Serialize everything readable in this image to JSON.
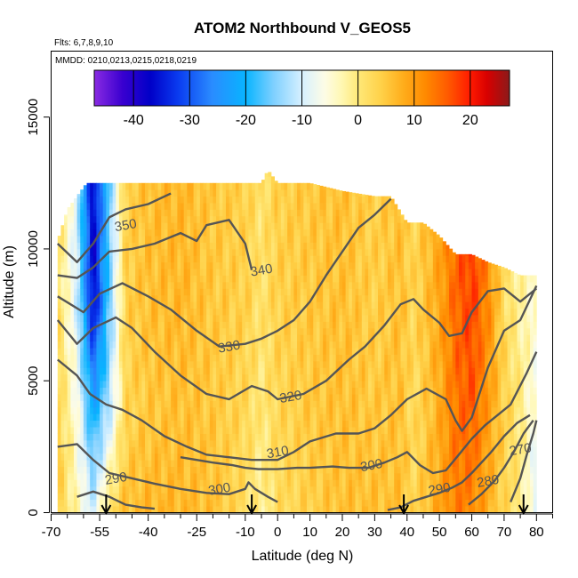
{
  "chart_data": {
    "type": "heatmap",
    "title": "ATOM2 Northbound V_GEOS5",
    "flights_text": "Flts: 6,7,8,9,10",
    "dates_text": "MMDD: 0210,0213,0215,0218,0219",
    "xlabel": "Latitude (deg N)",
    "ylabel": "Altitude (m)",
    "xlim": [
      -70,
      85
    ],
    "ylim": [
      0,
      17500
    ],
    "x_ticks": [
      {
        "v": -70,
        "label": "-70"
      },
      {
        "v": -55,
        "label": "-55"
      },
      {
        "v": -40,
        "label": "-40"
      },
      {
        "v": -25,
        "label": "-25"
      },
      {
        "v": -10,
        "label": "-10"
      },
      {
        "v": 0,
        "label": "0"
      },
      {
        "v": 10,
        "label": "10"
      },
      {
        "v": 20,
        "label": "20"
      },
      {
        "v": 30,
        "label": "30"
      },
      {
        "v": 40,
        "label": "40"
      },
      {
        "v": 50,
        "label": "50"
      },
      {
        "v": 60,
        "label": "60"
      },
      {
        "v": 70,
        "label": "70"
      },
      {
        "v": 80,
        "label": "80"
      }
    ],
    "x_minor_ticks": [
      -65,
      -60,
      -50,
      -45,
      -35,
      -30,
      -20,
      -15,
      -5,
      5,
      15,
      25,
      35,
      45,
      55,
      65,
      75,
      85
    ],
    "y_ticks": [
      {
        "v": 0,
        "label": "0"
      },
      {
        "v": 5000,
        "label": "5000"
      },
      {
        "v": 10000,
        "label": "10000"
      },
      {
        "v": 15000,
        "label": "15000"
      }
    ],
    "colorbar": {
      "range": [
        -47,
        27
      ],
      "ticks": [
        {
          "v": -40,
          "label": "-40"
        },
        {
          "v": -30,
          "label": "-30"
        },
        {
          "v": -20,
          "label": "-20"
        },
        {
          "v": -10,
          "label": "-10"
        },
        {
          "v": 0,
          "label": "0"
        },
        {
          "v": 10,
          "label": "10"
        },
        {
          "v": 20,
          "label": "20"
        }
      ],
      "stops": [
        {
          "v": -47,
          "color": "#8a2be2"
        },
        {
          "v": -42,
          "color": "#3a00d0"
        },
        {
          "v": -37,
          "color": "#0000c8"
        },
        {
          "v": -32,
          "color": "#0a3cf0"
        },
        {
          "v": -26,
          "color": "#2a8cff"
        },
        {
          "v": -20,
          "color": "#08b4ff"
        },
        {
          "v": -15,
          "color": "#7fd0ff"
        },
        {
          "v": -10,
          "color": "#d6f0ff"
        },
        {
          "v": -6,
          "color": "#fdfce6"
        },
        {
          "v": -3,
          "color": "#fff8b4"
        },
        {
          "v": 0,
          "color": "#ffe878"
        },
        {
          "v": 4,
          "color": "#ffd24a"
        },
        {
          "v": 8,
          "color": "#ffae1c"
        },
        {
          "v": 12,
          "color": "#ff8a00"
        },
        {
          "v": 16,
          "color": "#ff5a00"
        },
        {
          "v": 20,
          "color": "#ff1a00"
        },
        {
          "v": 23,
          "color": "#d80000"
        },
        {
          "v": 27,
          "color": "#8b1a1a"
        }
      ]
    },
    "flight_track_arrows_latitude": [
      -53,
      -8,
      39,
      76
    ],
    "heatmap_latitude_range": [
      -68,
      80
    ],
    "heatmap_column_tops_m": [
      [
        -68,
        10300
      ],
      [
        -65,
        11500
      ],
      [
        -62,
        12000
      ],
      [
        -59,
        12500
      ],
      [
        -55,
        12500
      ],
      [
        -50,
        12500
      ],
      [
        -45,
        12500
      ],
      [
        -40,
        12500
      ],
      [
        -35,
        12500
      ],
      [
        -30,
        12500
      ],
      [
        -25,
        12500
      ],
      [
        -20,
        12500
      ],
      [
        -15,
        12500
      ],
      [
        -10,
        12500
      ],
      [
        -5,
        12500
      ],
      [
        -3,
        13000
      ],
      [
        0,
        12500
      ],
      [
        10,
        12500
      ],
      [
        20,
        12200
      ],
      [
        30,
        12000
      ],
      [
        35,
        12000
      ],
      [
        40,
        11000
      ],
      [
        45,
        11000
      ],
      [
        50,
        10500
      ],
      [
        55,
        9800
      ],
      [
        60,
        9800
      ],
      [
        65,
        9500
      ],
      [
        70,
        9300
      ],
      [
        75,
        9000
      ],
      [
        80,
        9000
      ]
    ],
    "values_by_latitude_altitude": {
      "latitude": [
        -68,
        -62,
        -57,
        -52,
        -47,
        -40,
        -30,
        -20,
        -10,
        -5,
        0,
        10,
        20,
        30,
        38,
        42,
        50,
        55,
        60,
        65,
        70,
        75,
        79
      ],
      "low_altitude_0_4000m": [
        5,
        -3,
        -10,
        2,
        6,
        7,
        7,
        6,
        2,
        -2,
        2,
        4,
        6,
        6,
        6,
        3,
        9,
        13,
        12,
        8,
        3,
        0,
        -8
      ],
      "mid_altitude_4000_8000m": [
        4,
        -6,
        -22,
        -12,
        3,
        5,
        6,
        5,
        3,
        0,
        3,
        5,
        6,
        5,
        6,
        2,
        8,
        14,
        16,
        10,
        4,
        0,
        -6
      ],
      "high_altitude_8000_13000m": [
        2,
        -10,
        -38,
        -16,
        4,
        6,
        7,
        5,
        4,
        1,
        4,
        5,
        6,
        4,
        6,
        3,
        9,
        15,
        18,
        12,
        2,
        -2,
        -4
      ]
    },
    "contour_labels": [
      {
        "text": "350",
        "x": -47,
        "y": 10900
      },
      {
        "text": "340",
        "x": -5,
        "y": 9200
      },
      {
        "text": "330",
        "x": -15,
        "y": 6300
      },
      {
        "text": "320",
        "x": 4,
        "y": 4400
      },
      {
        "text": "310",
        "x": 0,
        "y": 2300
      },
      {
        "text": "300",
        "x": 29,
        "y": 1800
      },
      {
        "text": "300",
        "x": -18,
        "y": 900
      },
      {
        "text": "290",
        "x": -50,
        "y": 1300
      },
      {
        "text": "290",
        "x": 50,
        "y": 900
      },
      {
        "text": "280",
        "x": 65,
        "y": 1200
      },
      {
        "text": "270",
        "x": 75,
        "y": 2400
      }
    ]
  }
}
